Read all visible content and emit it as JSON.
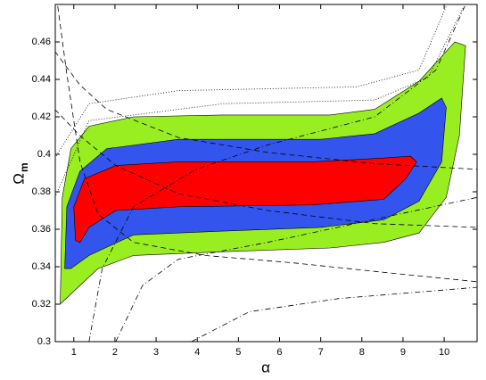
{
  "chart_data": {
    "type": "contour",
    "xlabel": "α",
    "ylabel": "Ω",
    "ylabel_subscript": "m",
    "xlim": [
      0.55,
      10.8
    ],
    "ylim": [
      0.3,
      0.48
    ],
    "xticks": [
      1,
      2,
      3,
      4,
      5,
      6,
      7,
      8,
      9,
      10
    ],
    "yticks": [
      0.3,
      0.32,
      0.34,
      0.36,
      0.38,
      0.4,
      0.42,
      0.44,
      0.46
    ],
    "series": [
      {
        "kind": "region",
        "color": "#99ee22",
        "x": [
          0.67,
          0.72,
          0.93,
          1.37,
          2.45,
          4.62,
          7.23,
          8.31,
          9.39,
          10.26,
          10.52,
          10.37,
          10.05,
          9.39,
          8.53,
          7.23,
          4.62,
          2.45,
          1.59,
          1.15
        ],
        "y": [
          0.32,
          0.377,
          0.403,
          0.415,
          0.42,
          0.421,
          0.421,
          0.424,
          0.439,
          0.46,
          0.458,
          0.41,
          0.377,
          0.358,
          0.353,
          0.35,
          0.348,
          0.346,
          0.339,
          0.33
        ]
      },
      {
        "kind": "region",
        "color": "#3355ee",
        "x": [
          0.78,
          0.83,
          1.15,
          1.8,
          3.54,
          7.0,
          8.31,
          9.39,
          9.94,
          10.05,
          9.94,
          9.39,
          8.53,
          7.0,
          4.62,
          2.45,
          1.37,
          0.93
        ],
        "y": [
          0.339,
          0.372,
          0.391,
          0.403,
          0.408,
          0.408,
          0.411,
          0.422,
          0.43,
          0.425,
          0.396,
          0.375,
          0.365,
          0.361,
          0.359,
          0.357,
          0.346,
          0.339
        ]
      },
      {
        "kind": "region",
        "color": "#ff0000",
        "x": [
          1.04,
          1.0,
          1.26,
          2.02,
          3.54,
          6.79,
          8.53,
          9.18,
          9.33,
          9.07,
          8.53,
          6.79,
          3.54,
          2.02,
          1.37,
          1.15
        ],
        "y": [
          0.354,
          0.372,
          0.387,
          0.394,
          0.396,
          0.396,
          0.398,
          0.399,
          0.396,
          0.387,
          0.376,
          0.373,
          0.372,
          0.37,
          0.361,
          0.353
        ]
      },
      {
        "kind": "line",
        "style": "dashed",
        "color": "#000000",
        "x": [
          0.54,
          1.15,
          1.8,
          3.54,
          5.71,
          8.31,
          10.8
        ],
        "y": [
          0.455,
          0.437,
          0.424,
          0.409,
          0.401,
          0.395,
          0.392
        ]
      },
      {
        "kind": "line",
        "style": "dashed",
        "color": "#000000",
        "x": [
          0.61,
          0.83,
          1.15,
          1.59,
          2.45,
          4.19,
          6.36,
          8.53,
          10.8
        ],
        "y": [
          0.479,
          0.443,
          0.396,
          0.368,
          0.353,
          0.346,
          0.342,
          0.337,
          0.332
        ]
      },
      {
        "kind": "line",
        "style": "dashed",
        "color": "#000000",
        "x": [
          0.54,
          1.15,
          2.02,
          3.54,
          5.71,
          8.31,
          10.8
        ],
        "y": [
          0.424,
          0.41,
          0.394,
          0.379,
          0.37,
          0.363,
          0.361
        ]
      },
      {
        "kind": "line",
        "style": "dashdot",
        "color": "#000000",
        "x": [
          1.37,
          1.69,
          2.45,
          3.97,
          5.71,
          8.31,
          9.8,
          10.5
        ],
        "y": [
          0.3,
          0.339,
          0.372,
          0.392,
          0.405,
          0.42,
          0.445,
          0.479
        ]
      },
      {
        "kind": "line",
        "style": "dashdot",
        "color": "#000000",
        "x": [
          2.02,
          2.67,
          3.54,
          5.71,
          10.8
        ],
        "y": [
          0.3,
          0.33,
          0.344,
          0.353,
          0.377
        ]
      },
      {
        "kind": "line",
        "style": "dashdot",
        "color": "#000000",
        "x": [
          3.86,
          5.27,
          7.44,
          10.8
        ],
        "y": [
          0.3,
          0.316,
          0.323,
          0.329
        ]
      },
      {
        "kind": "line",
        "style": "dotted",
        "color": "#000000",
        "x": [
          0.54,
          1.37,
          3.54,
          7.87,
          9.39,
          10.05
        ],
        "y": [
          0.398,
          0.427,
          0.434,
          0.436,
          0.445,
          0.479
        ]
      },
      {
        "kind": "line",
        "style": "dotted",
        "color": "#000000",
        "x": [
          0.54,
          1.37,
          4.62,
          8.31,
          9.61,
          10.48
        ],
        "y": [
          0.377,
          0.418,
          0.427,
          0.429,
          0.441,
          0.479
        ]
      }
    ]
  }
}
